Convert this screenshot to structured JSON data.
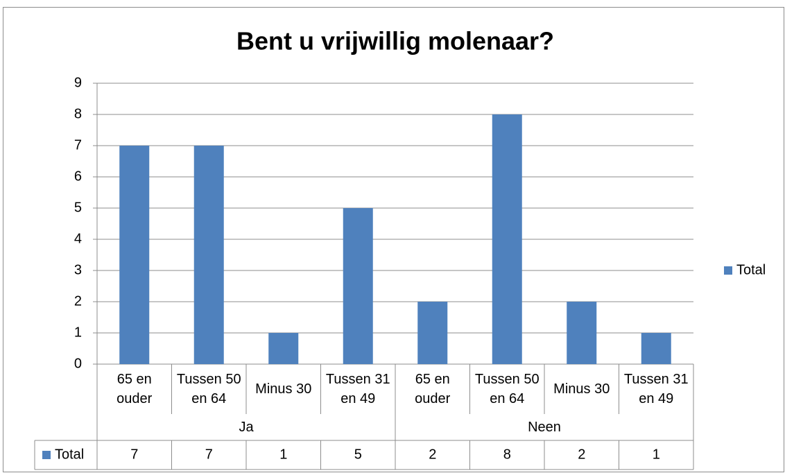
{
  "chart_data": {
    "type": "bar",
    "title": "Bent u vrijwillig molenaar?",
    "categories": [
      "65 en ouder",
      "Tussen 50 en 64",
      "Minus 30",
      "Tussen 31 en 49",
      "65 en ouder",
      "Tussen 50 en 64",
      "Minus 30",
      "Tussen 31 en 49"
    ],
    "groups": [
      "Ja",
      "Neen"
    ],
    "series": [
      {
        "name": "Total",
        "color": "#4f81bd",
        "values": [
          7,
          7,
          1,
          5,
          2,
          8,
          2,
          1
        ]
      }
    ],
    "ylim": [
      0,
      9
    ],
    "yticks": [
      0,
      1,
      2,
      3,
      4,
      5,
      6,
      7,
      8,
      9
    ],
    "grid": true,
    "legend": "right",
    "data_table": true
  }
}
